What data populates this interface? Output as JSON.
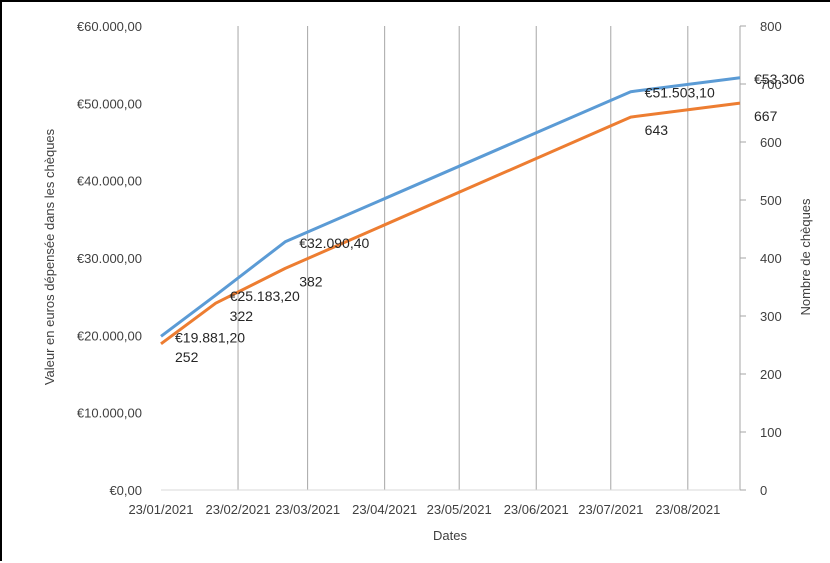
{
  "chart_data": {
    "type": "line",
    "xlabel": "Dates",
    "ylabel_left": "Valeur en euros dépensée dans les chèques",
    "ylabel_right": "Nombre de chèques",
    "x_ticks": [
      "23/01/2021",
      "23/02/2021",
      "23/03/2021",
      "23/04/2021",
      "23/05/2021",
      "23/06/2021",
      "23/07/2021",
      "23/08/2021"
    ],
    "x_tick_dates": [
      "2021-01-23",
      "2021-02-23",
      "2021-03-23",
      "2021-04-23",
      "2021-05-23",
      "2021-06-23",
      "2021-07-23",
      "2021-08-23"
    ],
    "x_range": [
      "2021-01-23",
      "2021-09-13"
    ],
    "y_left": {
      "range": [
        0,
        60000
      ],
      "ticks": [
        0,
        10000,
        20000,
        30000,
        40000,
        50000,
        60000
      ],
      "tick_labels": [
        "€0,00",
        "€10.000,00",
        "€20.000,00",
        "€30.000,00",
        "€40.000,00",
        "€50.000,00",
        "€60.000,00"
      ]
    },
    "y_right": {
      "range": [
        0,
        800
      ],
      "ticks": [
        0,
        100,
        200,
        300,
        400,
        500,
        600,
        700,
        800
      ],
      "tick_labels": [
        "0",
        "100",
        "200",
        "300",
        "400",
        "500",
        "600",
        "700",
        "800"
      ]
    },
    "grid": "vertical",
    "series": [
      {
        "axis": "left",
        "color": "#5b9bd5",
        "points": [
          {
            "x": "2021-01-23",
            "y": 19881.2,
            "label": "€19.881,20"
          },
          {
            "x": "2021-02-14",
            "y": 25183.2,
            "label": "€25.183,20"
          },
          {
            "x": "2021-03-14",
            "y": 32090.4,
            "label": "€32.090,40"
          },
          {
            "x": "2021-07-31",
            "y": 51503.1,
            "label": "€51.503,10"
          },
          {
            "x": "2021-09-13",
            "y": 53306.0,
            "label": "€53.306"
          }
        ]
      },
      {
        "axis": "right",
        "color": "#ed7d31",
        "points": [
          {
            "x": "2021-01-23",
            "y": 252,
            "label": "252"
          },
          {
            "x": "2021-02-14",
            "y": 322,
            "label": "322"
          },
          {
            "x": "2021-03-14",
            "y": 382,
            "label": "382"
          },
          {
            "x": "2021-07-31",
            "y": 643,
            "label": "643"
          },
          {
            "x": "2021-09-13",
            "y": 667,
            "label": "667"
          }
        ]
      }
    ]
  }
}
